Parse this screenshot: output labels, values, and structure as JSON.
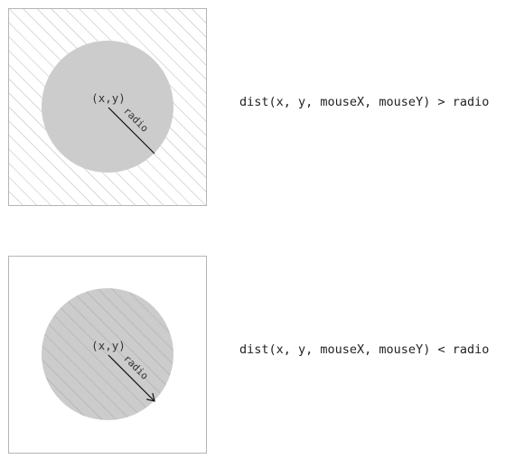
{
  "colors": {
    "frame": "#b5b5b5",
    "hatch": "#b5b5b5",
    "circle_fill": "#cccccc",
    "radius_line": "#111111",
    "background": "#ffffff"
  },
  "examples": [
    {
      "center_label": "(x,y)",
      "radius_label": "radio",
      "condition": "dist(x, y, mouseX, mouseY) > radio",
      "hatched_region": "outside-circle",
      "radius_end_marker": "none"
    },
    {
      "center_label": "(x,y)",
      "radius_label": "radio",
      "condition": "dist(x, y, mouseX, mouseY) < radio",
      "hatched_region": "inside-circle",
      "radius_end_marker": "arrowhead"
    }
  ]
}
